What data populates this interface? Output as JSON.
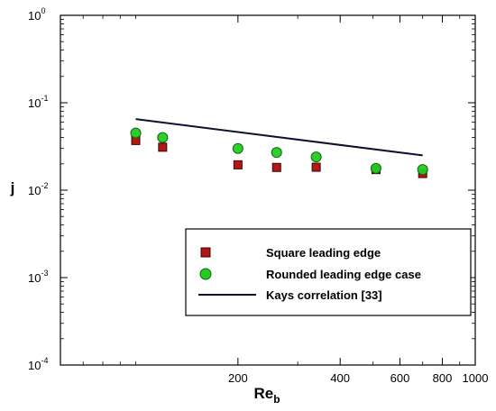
{
  "chart_data": {
    "type": "scatter",
    "x_scale": "log",
    "y_scale": "log",
    "xlim": [
      60,
      1000
    ],
    "ylim": [
      0.0001,
      1
    ],
    "grid": false,
    "legend_position": "bottom-right",
    "xlabel": "Re",
    "xlabel_subscript": "b",
    "ylabel": "j",
    "x_tick_labels": [
      {
        "value": 200,
        "label": "200"
      },
      {
        "value": 400,
        "label": "400"
      },
      {
        "value": 600,
        "label": "600"
      },
      {
        "value": 800,
        "label": "800"
      },
      {
        "value": 1000,
        "label": "1000"
      }
    ],
    "y_tick_labels": [
      {
        "value": 1,
        "base": "10",
        "exp": "0"
      },
      {
        "value": 0.1,
        "base": "10",
        "exp": "-1"
      },
      {
        "value": 0.01,
        "base": "10",
        "exp": "-2"
      },
      {
        "value": 0.001,
        "base": "10",
        "exp": "-3"
      },
      {
        "value": 0.0001,
        "base": "10",
        "exp": "-4"
      }
    ],
    "series": [
      {
        "name": "Square leading edge",
        "marker": "square",
        "color": "#b01818",
        "points": [
          [
            100,
            0.037
          ],
          [
            120,
            0.031
          ],
          [
            200,
            0.0195
          ],
          [
            260,
            0.0182
          ],
          [
            340,
            0.0183
          ],
          [
            510,
            0.0172
          ],
          [
            700,
            0.0155
          ]
        ]
      },
      {
        "name": "Rounded leading edge case",
        "marker": "circle",
        "color": "#22cc22",
        "points": [
          [
            100,
            0.045
          ],
          [
            120,
            0.04
          ],
          [
            200,
            0.03
          ],
          [
            260,
            0.027
          ],
          [
            340,
            0.024
          ],
          [
            510,
            0.0178
          ],
          [
            700,
            0.0172
          ]
        ]
      },
      {
        "name": "Kays correlation [33]",
        "marker": "line",
        "color": "#101030",
        "points": [
          [
            100,
            0.065
          ],
          [
            700,
            0.025
          ]
        ]
      }
    ]
  }
}
